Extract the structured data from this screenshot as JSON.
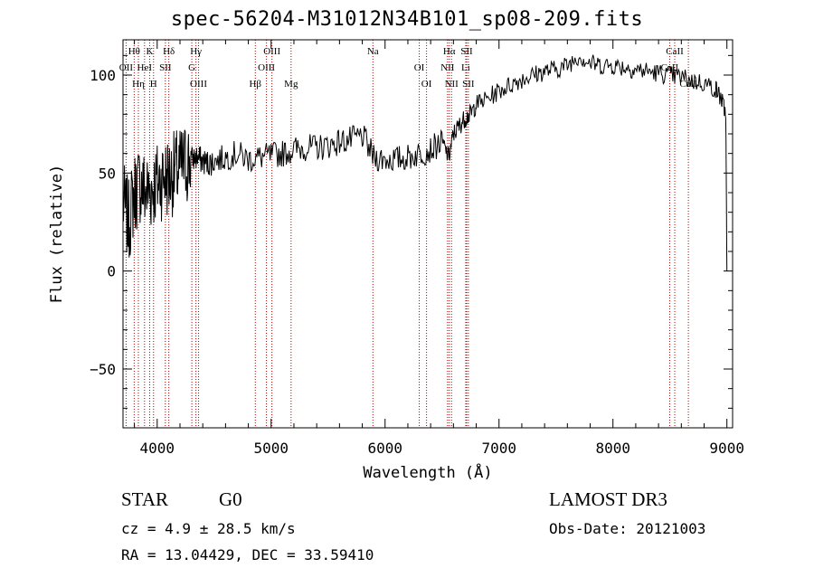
{
  "chart_data": {
    "type": "line",
    "title": "spec-56204-M31012N34B101_sp08-209.fits",
    "xlabel": "Wavelength (Å)",
    "ylabel": "Flux (relative)",
    "xlim": [
      3700,
      9050
    ],
    "ylim": [
      -80,
      118
    ],
    "xticks": [
      4000,
      5000,
      6000,
      7000,
      8000,
      9000
    ],
    "yticks": [
      -50,
      0,
      50,
      100
    ],
    "grid": false,
    "series": [
      {
        "color": "#000000",
        "x": [
          3700,
          3750,
          3800,
          3850,
          3900,
          3950,
          4000,
          4050,
          4100,
          4150,
          4200,
          4250,
          4300,
          4350,
          4400,
          4450,
          4500,
          4600,
          4700,
          4800,
          4900,
          5000,
          5100,
          5200,
          5300,
          5400,
          5500,
          5600,
          5700,
          5800,
          5900,
          6000,
          6100,
          6200,
          6300,
          6400,
          6500,
          6560,
          6600,
          6650,
          6700,
          6750,
          6800,
          6900,
          7000,
          7100,
          7200,
          7300,
          7400,
          7500,
          7600,
          7700,
          7800,
          7900,
          8000,
          8100,
          8200,
          8300,
          8400,
          8500,
          8600,
          8700,
          8800,
          8900,
          8950,
          8990,
          9000
        ],
        "y": [
          35,
          25,
          40,
          45,
          40,
          42,
          45,
          48,
          48,
          50,
          52,
          55,
          57,
          58,
          56,
          55,
          56,
          58,
          60,
          57,
          58,
          59,
          60,
          62,
          63,
          63,
          64,
          66,
          67,
          69,
          58,
          57,
          57,
          58,
          60,
          62,
          66,
          58,
          70,
          74,
          78,
          80,
          85,
          88,
          92,
          95,
          98,
          100,
          102,
          103,
          105,
          110,
          106,
          105,
          105,
          104,
          103,
          102,
          101,
          100,
          99,
          97,
          96,
          93,
          88,
          80,
          0
        ]
      }
    ],
    "lines": [
      {
        "label": "Hθ",
        "x": 3798
      },
      {
        "label": "OII",
        "x": 3727
      },
      {
        "label": "Hη",
        "x": 3835
      },
      {
        "label": "K",
        "x": 3934
      },
      {
        "label": "HeI",
        "x": 3889
      },
      {
        "label": "H",
        "x": 3968
      },
      {
        "label": "Hδ",
        "x": 4102
      },
      {
        "label": "SII",
        "x": 4072
      },
      {
        "label": "OIII",
        "x": 4363
      },
      {
        "label": "Hγ",
        "x": 4340
      },
      {
        "label": "G",
        "x": 4304
      },
      {
        "label": "Hβ",
        "x": 4861
      },
      {
        "label": "OIII",
        "x": 5007
      },
      {
        "label": "OIII",
        "x": 4959
      },
      {
        "label": "Mg",
        "x": 5175
      },
      {
        "label": "Na",
        "x": 5893
      },
      {
        "label": "OI",
        "x": 6300
      },
      {
        "label": "OI",
        "x": 6364
      },
      {
        "label": "Hα",
        "x": 6563
      },
      {
        "label": "NII",
        "x": 6548
      },
      {
        "label": "NII",
        "x": 6583
      },
      {
        "label": "SII",
        "x": 6716
      },
      {
        "label": "Li",
        "x": 6708
      },
      {
        "label": "SII",
        "x": 6731
      },
      {
        "label": "CaII",
        "x": 8542
      },
      {
        "label": "CaII",
        "x": 8498
      },
      {
        "label": "CaII",
        "x": 8662
      }
    ]
  },
  "info": {
    "class": "STAR",
    "subclass": "G0",
    "survey": "LAMOST DR3",
    "cz": "cz = 4.9 ± 28.5 km/s",
    "obs_date": "Obs-Date: 20121003",
    "radec": "RA =  13.04429, DEC =  33.59410"
  }
}
